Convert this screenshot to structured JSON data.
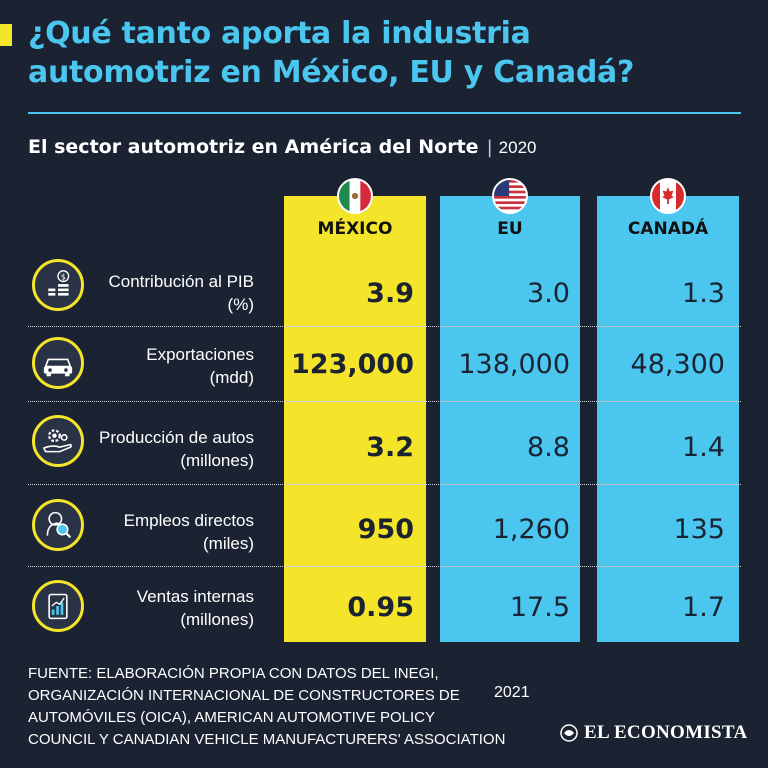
{
  "header": {
    "title_line1": "¿Qué tanto aporta la industria",
    "title_line2": "automotriz en México, EU y Canadá?",
    "subtitle": "El sector automotriz en América del Norte",
    "separator": "|",
    "year": "2020"
  },
  "chart_data": {
    "type": "table",
    "title": "El sector automotriz en América del Norte",
    "columns": [
      "MÉXICO",
      "EU",
      "CANADÁ"
    ],
    "rows": [
      {
        "label_line1": "Contribución al PIB",
        "label_line2": "(%)",
        "icon": "gdp-coins-icon",
        "values": [
          "3.9",
          "3.0",
          "1.3"
        ]
      },
      {
        "label_line1": "Exportaciones",
        "label_line2": "(mdd)",
        "icon": "car-export-icon",
        "values": [
          "123,000",
          "138,000",
          "48,300"
        ]
      },
      {
        "label_line1": "Producción de autos",
        "label_line2": "(millones)",
        "icon": "gear-hand-icon",
        "values": [
          "3.2",
          "8.8",
          "1.4"
        ]
      },
      {
        "label_line1": "Empleos directos",
        "label_line2": "(miles)",
        "icon": "worker-search-icon",
        "values": [
          "950",
          "1,260",
          "135"
        ]
      },
      {
        "label_line1": "Ventas internas",
        "label_line2": "(millones)",
        "icon": "sales-chart-icon",
        "values": [
          "0.95",
          "17.5",
          "1.7"
        ]
      }
    ]
  },
  "footer": {
    "source_line1": "FUENTE: ELABORACIÓN PROPIA CON DATOS DEL INEGI,",
    "source_line2": "ORGANIZACIÓN INTERNACIONAL DE CONSTRUCTORES DE",
    "source_line3": "AUTOMÓVILES (OICA),  AMERICAN AUTOMOTIVE POLICY",
    "source_line4": "COUNCIL Y CANADIAN VEHICLE MANUFACTURERS' ASSOCIATION",
    "source_year": "2021",
    "brand": "EL ECONOMISTA"
  },
  "colors": {
    "background": "#1b2333",
    "accent_blue": "#4ac6ef",
    "accent_yellow": "#f5e52a"
  }
}
